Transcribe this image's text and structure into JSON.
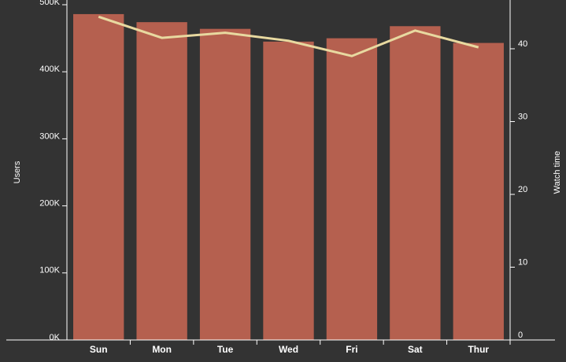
{
  "chart_data": {
    "type": "bar_line",
    "categories": [
      "Sun",
      "Mon",
      "Tue",
      "Wed",
      "Fri",
      "Sat",
      "Thur"
    ],
    "series": [
      {
        "name": "Users",
        "color": "#b5604f",
        "values": [
          486000,
          474000,
          464000,
          445000,
          450000,
          468000,
          443000
        ]
      },
      {
        "name": "Watch time",
        "color": "#e8d9a0",
        "axis": "y2",
        "values": [
          44.4,
          41.5,
          42.2,
          41.1,
          39.0,
          42.5,
          40.2
        ]
      }
    ],
    "ylabel": "Users",
    "y2label": "Watch time",
    "ylim": [
      0,
      500000
    ],
    "yticks": [
      {
        "value": 0,
        "label": "0K"
      },
      {
        "value": 100000,
        "label": "100K"
      },
      {
        "value": 200000,
        "label": "200K"
      },
      {
        "value": 300000,
        "label": "300K"
      },
      {
        "value": 400000,
        "label": "400K"
      },
      {
        "value": 500000,
        "label": "500K"
      }
    ],
    "y2lim": [
      0,
      46.7
    ],
    "y2ticks": [
      0,
      10,
      20,
      30,
      40
    ]
  }
}
